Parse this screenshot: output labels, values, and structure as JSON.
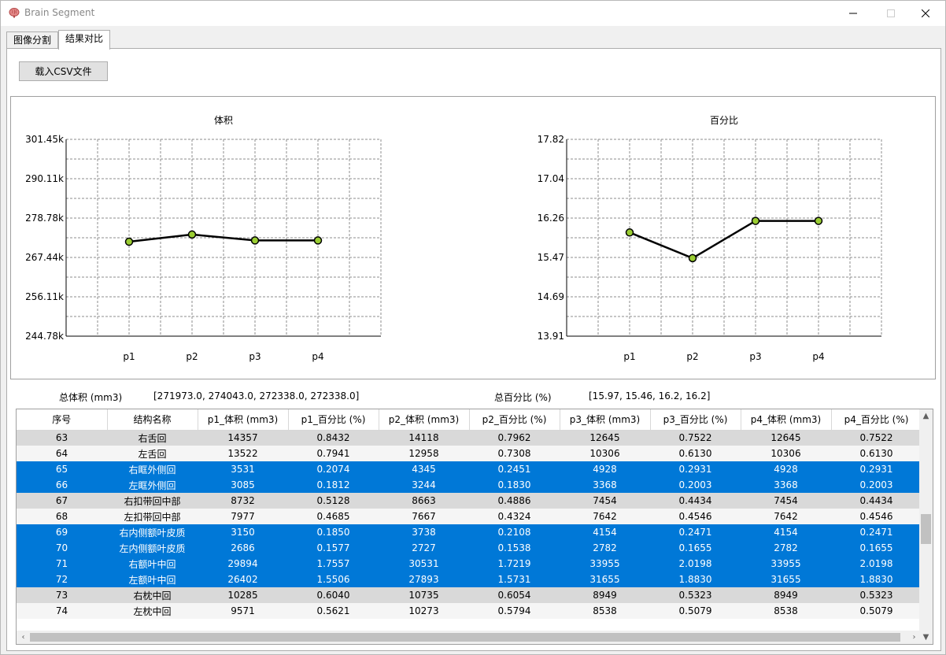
{
  "window": {
    "title": "Brain Segment",
    "icon": "brain-icon"
  },
  "tabs": [
    {
      "label": "图像分割",
      "active": false
    },
    {
      "label": "结果对比",
      "active": true
    }
  ],
  "toolbar": {
    "load_csv_label": "载入CSV文件"
  },
  "chart_data": [
    {
      "type": "line",
      "title": "体积",
      "categories": [
        "p1",
        "p2",
        "p3",
        "p4"
      ],
      "values": [
        271973.0,
        274043.0,
        272338.0,
        272338.0
      ],
      "ylim": [
        244780,
        301450
      ],
      "yticks": [
        "244.78k",
        "256.11k",
        "267.44k",
        "278.78k",
        "290.11k",
        "301.45k"
      ],
      "grid": true,
      "line_color": "#000000",
      "marker_color": "#9acd32"
    },
    {
      "type": "line",
      "title": "百分比",
      "categories": [
        "p1",
        "p2",
        "p3",
        "p4"
      ],
      "values": [
        15.97,
        15.46,
        16.2,
        16.2
      ],
      "ylim": [
        13.91,
        17.82
      ],
      "yticks": [
        "13.91",
        "14.69",
        "15.47",
        "16.26",
        "17.04",
        "17.82"
      ],
      "grid": true,
      "line_color": "#000000",
      "marker_color": "#9acd32"
    }
  ],
  "summary": {
    "total_volume_label": "总体积 (mm3)",
    "total_volume_value": "[271973.0, 274043.0, 272338.0, 272338.0]",
    "total_percent_label": "总百分比 (%)",
    "total_percent_value": "[15.97, 15.46, 16.2, 16.2]"
  },
  "table": {
    "columns": [
      "序号",
      "结构名称",
      "p1_体积 (mm3)",
      "p1_百分比 (%)",
      "p2_体积 (mm3)",
      "p2_百分比 (%)",
      "p3_体积 (mm3)",
      "p3_百分比 (%)",
      "p4_体积 (mm3)",
      "p4_百分比 (%)"
    ],
    "rows": [
      {
        "style": "gray",
        "cells": [
          "63",
          "右舌回",
          "14357",
          "0.8432",
          "14118",
          "0.7962",
          "12645",
          "0.7522",
          "12645",
          "0.7522"
        ]
      },
      {
        "style": "light",
        "cells": [
          "64",
          "左舌回",
          "13522",
          "0.7941",
          "12958",
          "0.7308",
          "10306",
          "0.6130",
          "10306",
          "0.6130"
        ]
      },
      {
        "style": "blue",
        "cells": [
          "65",
          "右眶外侧回",
          "3531",
          "0.2074",
          "4345",
          "0.2451",
          "4928",
          "0.2931",
          "4928",
          "0.2931"
        ]
      },
      {
        "style": "blue",
        "cells": [
          "66",
          "左眶外侧回",
          "3085",
          "0.1812",
          "3244",
          "0.1830",
          "3368",
          "0.2003",
          "3368",
          "0.2003"
        ]
      },
      {
        "style": "gray",
        "cells": [
          "67",
          "右扣带回中部",
          "8732",
          "0.5128",
          "8663",
          "0.4886",
          "7454",
          "0.4434",
          "7454",
          "0.4434"
        ]
      },
      {
        "style": "light",
        "cells": [
          "68",
          "左扣带回中部",
          "7977",
          "0.4685",
          "7667",
          "0.4324",
          "7642",
          "0.4546",
          "7642",
          "0.4546"
        ]
      },
      {
        "style": "blue",
        "cells": [
          "69",
          "右内侧额叶皮质",
          "3150",
          "0.1850",
          "3738",
          "0.2108",
          "4154",
          "0.2471",
          "4154",
          "0.2471"
        ]
      },
      {
        "style": "blue",
        "cells": [
          "70",
          "左内侧额叶皮质",
          "2686",
          "0.1577",
          "2727",
          "0.1538",
          "2782",
          "0.1655",
          "2782",
          "0.1655"
        ]
      },
      {
        "style": "blue",
        "cells": [
          "71",
          "右额叶中回",
          "29894",
          "1.7557",
          "30531",
          "1.7219",
          "33955",
          "2.0198",
          "33955",
          "2.0198"
        ]
      },
      {
        "style": "blue",
        "cells": [
          "72",
          "左额叶中回",
          "26402",
          "1.5506",
          "27893",
          "1.5731",
          "31655",
          "1.8830",
          "31655",
          "1.8830"
        ]
      },
      {
        "style": "gray",
        "cells": [
          "73",
          "右枕中回",
          "10285",
          "0.6040",
          "10735",
          "0.6054",
          "8949",
          "0.5323",
          "8949",
          "0.5323"
        ]
      },
      {
        "style": "light",
        "cells": [
          "74",
          "左枕中回",
          "9571",
          "0.5621",
          "10273",
          "0.5794",
          "8538",
          "0.5079",
          "8538",
          "0.5079"
        ]
      }
    ]
  },
  "colors": {
    "selection": "#0078d7",
    "row_gray": "#d9d9d9",
    "row_light": "#f5f5f5"
  }
}
